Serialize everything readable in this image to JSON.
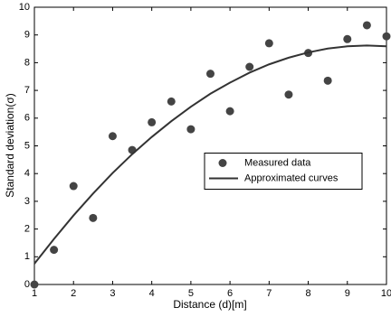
{
  "chart_data": {
    "type": "scatter",
    "xlabel": "Distance (d)[m]",
    "ylabel": "Standard deviation(σ)",
    "x": [
      1,
      1.5,
      2,
      2.5,
      3,
      3.5,
      4,
      4.5,
      5,
      5.5,
      6,
      6.5,
      7,
      7.5,
      8,
      8.5,
      9,
      9.5,
      10
    ],
    "series": [
      {
        "name": "Measured data",
        "type": "scatter",
        "color": "#444444",
        "values": [
          0,
          1.25,
          3.55,
          2.4,
          5.35,
          4.85,
          5.85,
          6.6,
          5.6,
          7.6,
          6.25,
          7.85,
          8.7,
          6.85,
          8.35,
          7.35,
          8.85,
          9.35,
          8.95
        ]
      },
      {
        "name": "Approximated curves",
        "type": "line",
        "color": "#333333",
        "values": [
          0.75,
          1.64,
          2.49,
          3.28,
          4.02,
          4.7,
          5.32,
          5.89,
          6.41,
          6.88,
          7.28,
          7.64,
          7.94,
          8.18,
          8.37,
          8.51,
          8.59,
          8.62,
          8.59
        ]
      }
    ],
    "xlim": [
      1,
      10
    ],
    "xticks": [
      1,
      2,
      3,
      4,
      5,
      6,
      7,
      8,
      9,
      10
    ],
    "ylim": [
      0,
      10
    ],
    "yticks": [
      0,
      1,
      2,
      3,
      4,
      5,
      6,
      7,
      8,
      9,
      10
    ],
    "grid": false,
    "legend_position": "center-right"
  }
}
